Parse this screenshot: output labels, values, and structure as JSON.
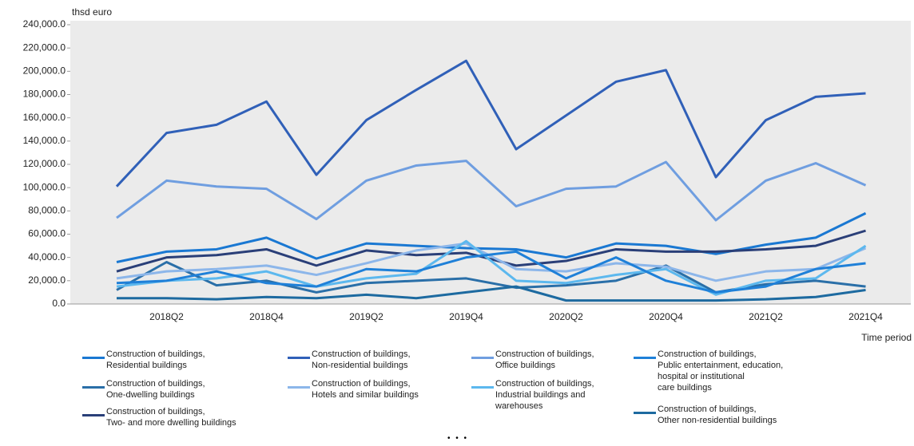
{
  "chart_data": {
    "type": "line",
    "y_label": "thsd euro",
    "x_label": "Time period",
    "more_indicator": "• • •",
    "categories": [
      null,
      "2018Q2",
      null,
      "2018Q4",
      null,
      "2019Q2",
      null,
      "2019Q4",
      null,
      "2020Q2",
      null,
      "2020Q4",
      null,
      "2021Q2",
      null,
      "2021Q4"
    ],
    "ylim": [
      0,
      240000
    ],
    "yticks": [
      {
        "value": 0,
        "label": "0.0"
      },
      {
        "value": 20000,
        "label": "20,000.0"
      },
      {
        "value": 40000,
        "label": "40,000.0"
      },
      {
        "value": 60000,
        "label": "60,000.0"
      },
      {
        "value": 80000,
        "label": "80,000.0"
      },
      {
        "value": 100000,
        "label": "100,000.0"
      },
      {
        "value": 120000,
        "label": "120,000.0"
      },
      {
        "value": 140000,
        "label": "140,000.0"
      },
      {
        "value": 160000,
        "label": "160,000.0"
      },
      {
        "value": 180000,
        "label": "180,000.0"
      },
      {
        "value": 200000,
        "label": "200,000.0"
      },
      {
        "value": 220000,
        "label": "220,000.0"
      },
      {
        "value": 240000,
        "label": "240,000.0"
      }
    ],
    "grid": false,
    "series": [
      {
        "name": "Construction of buildings,\nResidential buildings",
        "color": "#1a78d2",
        "values": [
          36000,
          45000,
          47000,
          57000,
          39000,
          52000,
          50000,
          48000,
          47000,
          40000,
          52000,
          50000,
          43000,
          51000,
          57000,
          78000
        ]
      },
      {
        "name": "Construction of buildings,\nOne-dwelling buildings",
        "color": "#2a6fa8",
        "values": [
          12000,
          36000,
          16000,
          20000,
          10000,
          18000,
          20000,
          22000,
          14000,
          16000,
          20000,
          33000,
          10000,
          17000,
          20000,
          15000
        ]
      },
      {
        "name": "Construction of buildings,\nTwo- and more dwelling buildings",
        "color": "#2a3f78",
        "values": [
          28000,
          40000,
          42000,
          47000,
          33000,
          46000,
          42000,
          44000,
          33000,
          37000,
          47000,
          45000,
          45000,
          47000,
          50000,
          63000
        ]
      },
      {
        "name": "Construction of buildings,\nNon-residential buildings",
        "color": "#3060b8",
        "values": [
          101000,
          147000,
          154000,
          174000,
          111000,
          158000,
          184000,
          209000,
          133000,
          162000,
          191000,
          201000,
          109000,
          158000,
          178000,
          181000
        ]
      },
      {
        "name": "Construction of buildings,\nHotels and similar buildings",
        "color": "#8cb6ea",
        "values": [
          22000,
          28000,
          30000,
          33000,
          25000,
          35000,
          46000,
          52000,
          30000,
          28000,
          35000,
          32000,
          20000,
          28000,
          30000,
          48000
        ]
      },
      {
        "name": "Construction of buildings,\nOffice buildings",
        "color": "#6f9ee0",
        "values": [
          74000,
          106000,
          101000,
          99000,
          73000,
          106000,
          119000,
          123000,
          84000,
          99000,
          101000,
          122000,
          72000,
          106000,
          121000,
          102000
        ]
      },
      {
        "name": "Construction of buildings,\nIndustrial buildings and\nwarehouses",
        "color": "#5cb8ee",
        "values": [
          15000,
          20000,
          22000,
          28000,
          15000,
          22000,
          26000,
          54000,
          20000,
          18000,
          25000,
          30000,
          8000,
          20000,
          22000,
          50000
        ]
      },
      {
        "name": "Construction of buildings,\nPublic entertainment, education,\nhospital or institutional\ncare buildings",
        "color": "#1f80d8",
        "values": [
          18000,
          20000,
          28000,
          18000,
          15000,
          30000,
          28000,
          40000,
          45000,
          22000,
          40000,
          20000,
          10000,
          15000,
          30000,
          35000
        ]
      },
      {
        "name": "Construction of buildings,\nOther non-residential buildings",
        "color": "#1d6aa0",
        "values": [
          5000,
          5000,
          4000,
          6000,
          5000,
          8000,
          5000,
          10000,
          15000,
          3000,
          3000,
          3000,
          3000,
          4000,
          6000,
          12000
        ]
      }
    ]
  }
}
